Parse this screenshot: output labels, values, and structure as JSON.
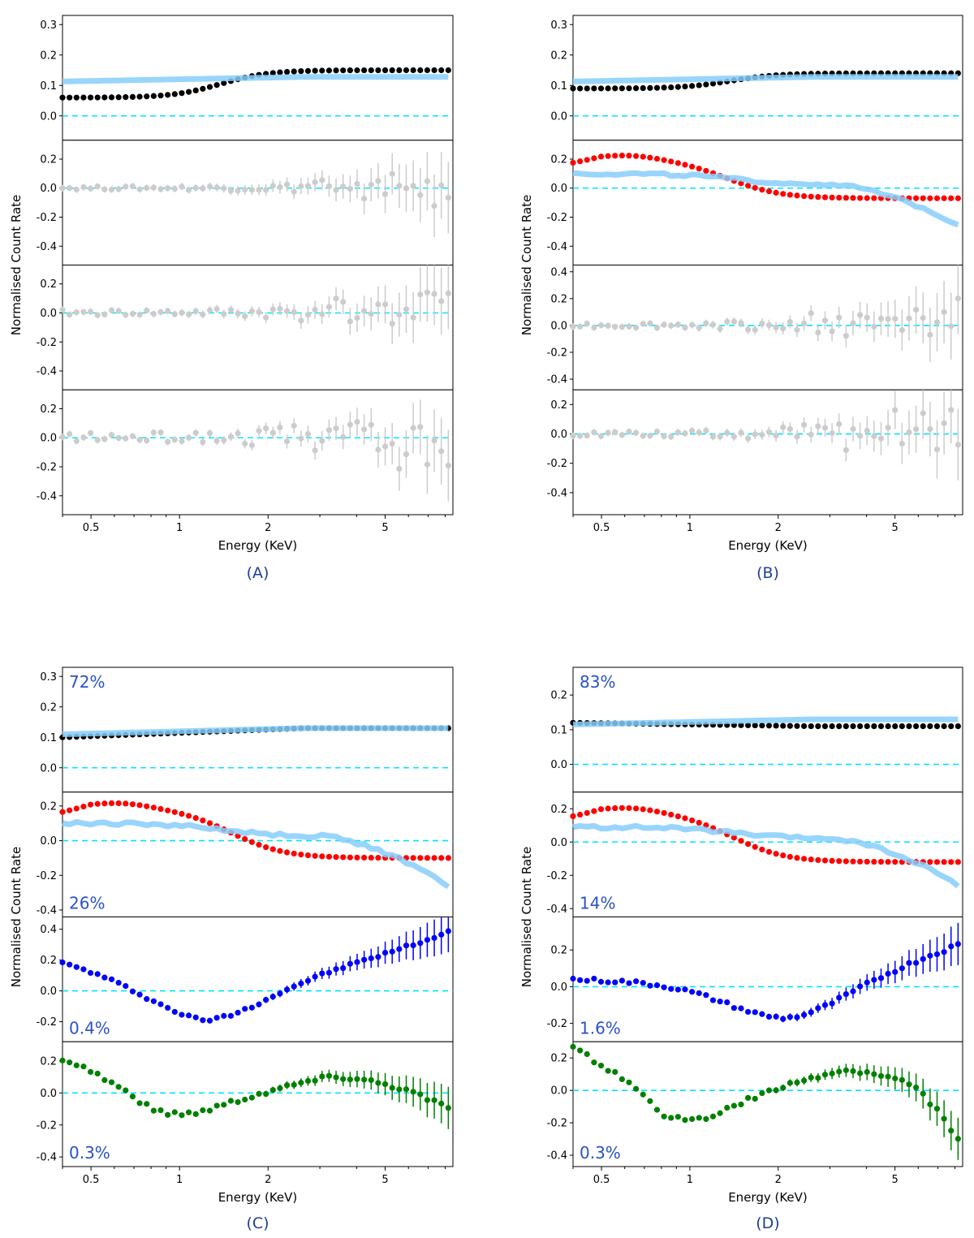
{
  "figure": {
    "panels": [
      {
        "id": "A",
        "caption": "(A)",
        "xlabel": "Energy (KeV)",
        "ylabel": "Normalised Count Rate",
        "percents": [
          "",
          "",
          "",
          ""
        ]
      },
      {
        "id": "B",
        "caption": "(B)",
        "xlabel": "Energy (KeV)",
        "ylabel": "Normalised Count Rate",
        "percents": [
          "",
          "",
          "",
          ""
        ]
      },
      {
        "id": "C",
        "caption": "(C)",
        "xlabel": "Energy (KeV)",
        "ylabel": "Normalised Count Rate",
        "percents": [
          "72%",
          "26%",
          "0.4%",
          "0.3%"
        ]
      },
      {
        "id": "D",
        "caption": "(D)",
        "xlabel": "Energy (KeV)",
        "ylabel": "Normalised Count Rate",
        "percents": [
          "83%",
          "14%",
          "1.6%",
          "0.3%"
        ]
      }
    ]
  },
  "chart_data": [
    {
      "panel": "A",
      "type": "scatter",
      "xscale": "log",
      "xlim": [
        0.4,
        8.5
      ],
      "xticks": [
        "0.5",
        "1",
        "2",
        "5"
      ],
      "subplots": [
        {
          "ylim": [
            -0.08,
            0.33
          ],
          "yticks": [
            0.0,
            0.1,
            0.2,
            0.3
          ],
          "ytick_labels": [
            "0.0",
            "0.1",
            "0.2",
            "0.3"
          ],
          "series": [
            {
              "name": "component",
              "color": "#000000",
              "shape": "logistic",
              "params": {
                "a": 0.06,
                "b": 0.15,
                "c": 1.2,
                "w": 0.18
              }
            },
            {
              "name": "observed",
              "color": "#87cefa",
              "style": "band",
              "shape": "linear",
              "params": {
                "a": 0.113,
                "b": 0.128
              }
            }
          ]
        },
        {
          "ylim": [
            -0.53,
            0.33
          ],
          "yticks": [
            -0.4,
            -0.2,
            0.0,
            0.2
          ],
          "ytick_labels": [
            "-0.4",
            "-0.2",
            "0.0",
            "0.2"
          ],
          "series": [
            {
              "name": "residual",
              "color": "#cccccc",
              "shape": "noise",
              "params": {
                "seed": 3,
                "amp": 0.012
              }
            }
          ]
        },
        {
          "ylim": [
            -0.53,
            0.33
          ],
          "yticks": [
            -0.4,
            -0.2,
            0.0,
            0.2
          ],
          "ytick_labels": [
            "-0.4",
            "-0.2",
            "0.0",
            "0.2"
          ],
          "series": [
            {
              "name": "residual",
              "color": "#cccccc",
              "shape": "noise",
              "params": {
                "seed": 7,
                "amp": 0.02
              }
            }
          ]
        },
        {
          "ylim": [
            -0.53,
            0.33
          ],
          "yticks": [
            -0.4,
            -0.2,
            0.0,
            0.2
          ],
          "ytick_labels": [
            "-0.4",
            "-0.2",
            "0.0",
            "0.2"
          ],
          "series": [
            {
              "name": "residual",
              "color": "#cccccc",
              "shape": "noise",
              "params": {
                "seed": 11,
                "amp": 0.03
              }
            }
          ]
        }
      ]
    },
    {
      "panel": "B",
      "type": "scatter",
      "xscale": "log",
      "xlim": [
        0.4,
        8.5
      ],
      "xticks": [
        "0.5",
        "1",
        "2",
        "5"
      ],
      "subplots": [
        {
          "ylim": [
            -0.08,
            0.33
          ],
          "yticks": [
            0.0,
            0.1,
            0.2,
            0.3
          ],
          "ytick_labels": [
            "0.0",
            "0.1",
            "0.2",
            "0.3"
          ],
          "series": [
            {
              "name": "component",
              "color": "#000000",
              "shape": "logistic",
              "params": {
                "a": 0.09,
                "b": 0.14,
                "c": 1.2,
                "w": 0.18
              }
            },
            {
              "name": "observed",
              "color": "#87cefa",
              "style": "band",
              "shape": "linear",
              "params": {
                "a": 0.113,
                "b": 0.128
              }
            }
          ]
        },
        {
          "ylim": [
            -0.53,
            0.33
          ],
          "yticks": [
            -0.4,
            -0.2,
            0.0,
            0.2
          ],
          "ytick_labels": [
            "-0.4",
            "-0.2",
            "0.0",
            "0.2"
          ],
          "series": [
            {
              "name": "component",
              "color": "#ff0000",
              "shape": "bump_decline",
              "params": {
                "a": 0.2,
                "b": -0.07,
                "c": 1.35,
                "w": 0.2
              }
            },
            {
              "name": "observed",
              "color": "#87cefa",
              "style": "band",
              "shape": "decline",
              "params": {
                "a": 0.15,
                "b": -0.34
              }
            }
          ]
        },
        {
          "ylim": [
            -0.48,
            0.45
          ],
          "yticks": [
            -0.4,
            -0.2,
            0.0,
            0.2,
            0.4
          ],
          "ytick_labels": [
            "-0.4",
            "-0.2",
            "0.0",
            "0.2",
            "0.4"
          ],
          "series": [
            {
              "name": "residual",
              "color": "#cccccc",
              "shape": "noise",
              "params": {
                "seed": 5,
                "amp": 0.02
              }
            }
          ]
        },
        {
          "ylim": [
            -0.55,
            0.3
          ],
          "yticks": [
            -0.4,
            -0.2,
            0.0,
            0.2
          ],
          "ytick_labels": [
            "-0.4",
            "-0.2",
            "0.0",
            "0.2"
          ],
          "series": [
            {
              "name": "residual",
              "color": "#cccccc",
              "shape": "noise",
              "params": {
                "seed": 13,
                "amp": 0.02
              }
            }
          ]
        }
      ]
    },
    {
      "panel": "C",
      "type": "scatter",
      "xscale": "log",
      "xlim": [
        0.4,
        8.5
      ],
      "xticks": [
        "0.5",
        "1",
        "2",
        "5"
      ],
      "subplots": [
        {
          "ylim": [
            -0.08,
            0.33
          ],
          "yticks": [
            0.0,
            0.1,
            0.2,
            0.3
          ],
          "ytick_labels": [
            "0.0",
            "0.1",
            "0.2",
            "0.3"
          ],
          "series": [
            {
              "name": "component",
              "color": "#000000",
              "shape": "linear",
              "params": {
                "a": 0.1,
                "b": 0.13
              }
            },
            {
              "name": "observed",
              "color": "#87cefa",
              "style": "band",
              "shape": "linear",
              "params": {
                "a": 0.11,
                "b": 0.13
              }
            }
          ]
        },
        {
          "ylim": [
            -0.44,
            0.28
          ],
          "yticks": [
            -0.4,
            -0.2,
            0.0,
            0.2
          ],
          "ytick_labels": [
            "-0.4",
            "-0.2",
            "0.0",
            "0.2"
          ],
          "series": [
            {
              "name": "component",
              "color": "#ff0000",
              "shape": "bump_decline",
              "params": {
                "a": 0.19,
                "b": -0.1,
                "c": 1.5,
                "w": 0.2
              }
            },
            {
              "name": "observed",
              "color": "#87cefa",
              "style": "band",
              "shape": "decline",
              "params": {
                "a": 0.15,
                "b": -0.35
              }
            }
          ]
        },
        {
          "ylim": [
            -0.33,
            0.48
          ],
          "yticks": [
            -0.2,
            0.0,
            0.2,
            0.4
          ],
          "ytick_labels": [
            "-0.2",
            "0.0",
            "0.2",
            "0.4"
          ],
          "series": [
            {
              "name": "component",
              "color": "#0000ff",
              "shape": "wave",
              "params": {
                "start": 0.19,
                "dip": -0.19,
                "dipx": 1.2,
                "end": 0.38
              }
            }
          ]
        },
        {
          "ylim": [
            -0.46,
            0.32
          ],
          "yticks": [
            -0.4,
            -0.2,
            0.0,
            0.2
          ],
          "ytick_labels": [
            "-0.4",
            "-0.2",
            "0.0",
            "0.2"
          ],
          "series": [
            {
              "name": "component",
              "color": "#008000",
              "shape": "wave2",
              "params": {
                "start": 0.22,
                "dip": -0.13,
                "dipx": 1.0,
                "mid": 0.1,
                "end": -0.1
              }
            }
          ]
        }
      ]
    },
    {
      "panel": "D",
      "type": "scatter",
      "xscale": "log",
      "xlim": [
        0.4,
        8.5
      ],
      "xticks": [
        "0.5",
        "1",
        "2",
        "5"
      ],
      "subplots": [
        {
          "ylim": [
            -0.08,
            0.28
          ],
          "yticks": [
            0.0,
            0.1,
            0.2
          ],
          "ytick_labels": [
            "0.0",
            "0.1",
            "0.2"
          ],
          "series": [
            {
              "name": "component",
              "color": "#000000",
              "shape": "linear",
              "params": {
                "a": 0.12,
                "b": 0.11
              }
            },
            {
              "name": "observed",
              "color": "#87cefa",
              "style": "band",
              "shape": "linear",
              "params": {
                "a": 0.115,
                "b": 0.13
              }
            }
          ]
        },
        {
          "ylim": [
            -0.45,
            0.3
          ],
          "yticks": [
            -0.4,
            -0.2,
            0.0,
            0.2
          ],
          "ytick_labels": [
            "-0.4",
            "-0.2",
            "0.0",
            "0.2"
          ],
          "series": [
            {
              "name": "component",
              "color": "#ff0000",
              "shape": "bump_decline",
              "params": {
                "a": 0.18,
                "b": -0.12,
                "c": 1.4,
                "w": 0.2
              }
            },
            {
              "name": "observed",
              "color": "#87cefa",
              "style": "band",
              "shape": "decline",
              "params": {
                "a": 0.14,
                "b": -0.34
              }
            }
          ]
        },
        {
          "ylim": [
            -0.3,
            0.38
          ],
          "yticks": [
            -0.2,
            0.0,
            0.2
          ],
          "ytick_labels": [
            "-0.2",
            "0.0",
            "0.2"
          ],
          "series": [
            {
              "name": "component",
              "color": "#0000ff",
              "shape": "wave",
              "params": {
                "start": 0.04,
                "dip": -0.17,
                "dipx": 2.1,
                "end": 0.23
              }
            }
          ]
        },
        {
          "ylim": [
            -0.47,
            0.3
          ],
          "yticks": [
            -0.4,
            -0.2,
            0.0,
            0.2
          ],
          "ytick_labels": [
            "-0.4",
            "-0.2",
            "0.0",
            "0.2"
          ],
          "series": [
            {
              "name": "component",
              "color": "#008000",
              "shape": "wave2",
              "params": {
                "start": 0.26,
                "dip": -0.18,
                "dipx": 1.0,
                "mid": 0.12,
                "end": -0.3
              }
            }
          ]
        }
      ]
    }
  ]
}
